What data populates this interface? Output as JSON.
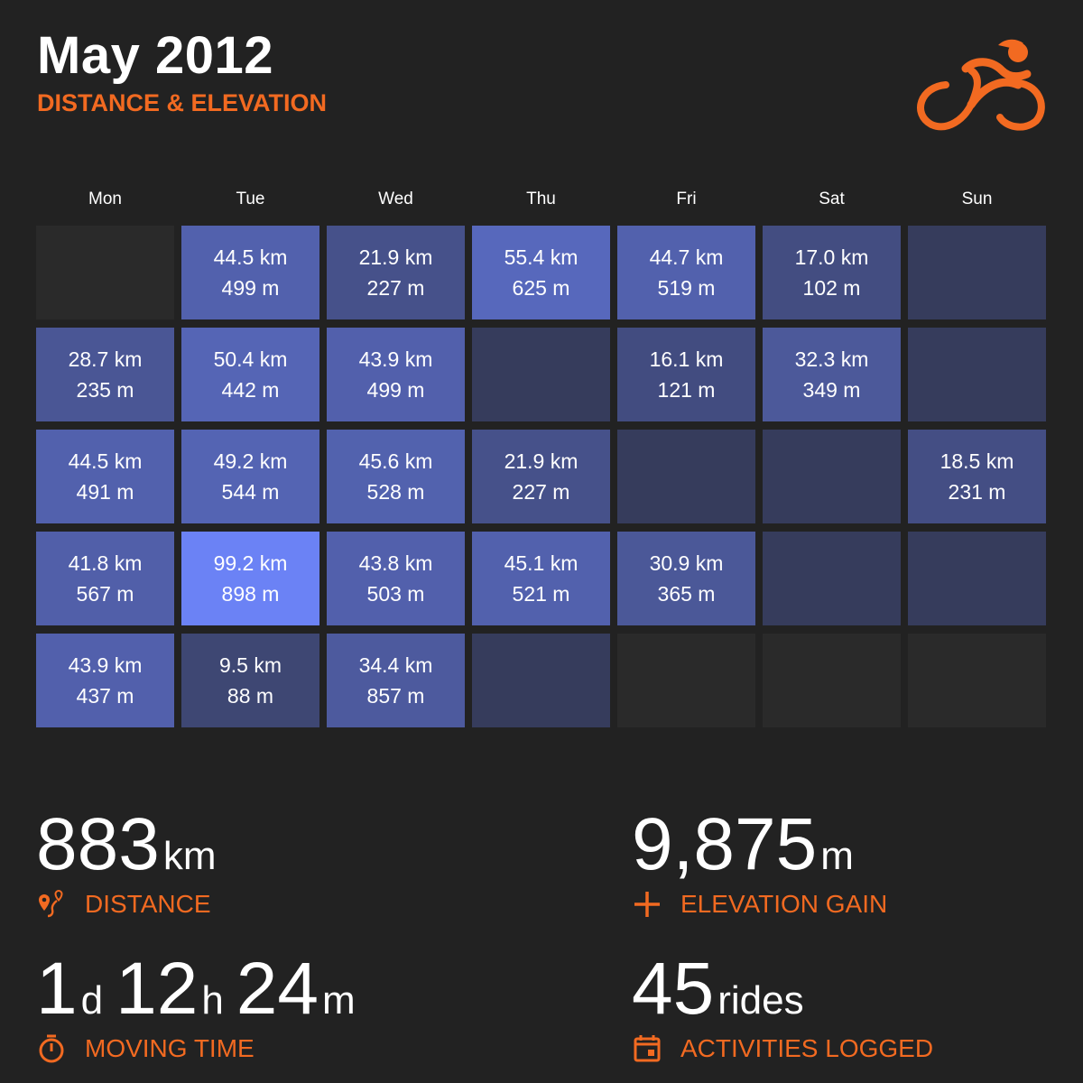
{
  "header": {
    "title": "May 2012",
    "subtitle": "DISTANCE & ELEVATION",
    "logo": "cyclist-icon"
  },
  "colors": {
    "accent": "#f26a21",
    "background": "#222222",
    "no_ride": "#363c5c",
    "max_ride": "#6b82f5",
    "outside_month": "#2a2a2a"
  },
  "calendar": {
    "weekdays": [
      "Mon",
      "Tue",
      "Wed",
      "Thu",
      "Fri",
      "Sat",
      "Sun"
    ],
    "weeks": [
      [
        null,
        {
          "km": "44.5 km",
          "m": "499 m",
          "v": 44.5
        },
        {
          "km": "21.9 km",
          "m": "227 m",
          "v": 21.9
        },
        {
          "km": "55.4 km",
          "m": "625 m",
          "v": 55.4
        },
        {
          "km": "44.7 km",
          "m": "519 m",
          "v": 44.7
        },
        {
          "km": "17.0 km",
          "m": "102 m",
          "v": 17.0
        },
        {}
      ],
      [
        {
          "km": "28.7 km",
          "m": "235 m",
          "v": 28.7
        },
        {
          "km": "50.4 km",
          "m": "442 m",
          "v": 50.4
        },
        {
          "km": "43.9 km",
          "m": "499 m",
          "v": 43.9
        },
        {},
        {
          "km": "16.1 km",
          "m": "121 m",
          "v": 16.1
        },
        {
          "km": "32.3 km",
          "m": "349 m",
          "v": 32.3
        },
        {}
      ],
      [
        {
          "km": "44.5 km",
          "m": "491 m",
          "v": 44.5
        },
        {
          "km": "49.2 km",
          "m": "544 m",
          "v": 49.2
        },
        {
          "km": "45.6 km",
          "m": "528 m",
          "v": 45.6
        },
        {
          "km": "21.9 km",
          "m": "227 m",
          "v": 21.9
        },
        {},
        {},
        {
          "km": "18.5 km",
          "m": "231 m",
          "v": 18.5
        }
      ],
      [
        {
          "km": "41.8 km",
          "m": "567 m",
          "v": 41.8
        },
        {
          "km": "99.2 km",
          "m": "898 m",
          "v": 99.2
        },
        {
          "km": "43.8 km",
          "m": "503 m",
          "v": 43.8
        },
        {
          "km": "45.1 km",
          "m": "521 m",
          "v": 45.1
        },
        {
          "km": "30.9 km",
          "m": "365 m",
          "v": 30.9
        },
        {},
        {}
      ],
      [
        {
          "km": "43.9 km",
          "m": "437 m",
          "v": 43.9
        },
        {
          "km": "9.5 km",
          "m": "88 m",
          "v": 9.5
        },
        {
          "km": "34.4 km",
          "m": "857 m",
          "v": 34.4
        },
        {},
        null,
        null,
        null
      ]
    ]
  },
  "stats": {
    "distance": {
      "value": "883",
      "unit": "km",
      "label": "DISTANCE",
      "icon": "route-pin-icon"
    },
    "elevation": {
      "value": "9,875",
      "unit": "m",
      "label": "ELEVATION GAIN",
      "icon": "plus-icon"
    },
    "moving_time": {
      "d": "1",
      "d_unit": "d",
      "h": "12",
      "h_unit": "h",
      "m": "24",
      "m_unit": "m",
      "label": "MOVING TIME",
      "icon": "stopwatch-icon"
    },
    "rides": {
      "value": "45",
      "unit": "rides",
      "label": "ACTIVITIES LOGGED",
      "icon": "calendar-icon"
    }
  }
}
